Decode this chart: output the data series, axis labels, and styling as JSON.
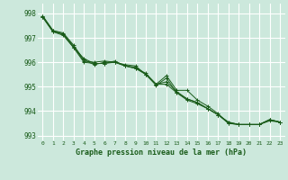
{
  "title": "Graphe pression niveau de la mer (hPa)",
  "xlabel_fontsize": 6.0,
  "line_color": "#1a5c1a",
  "bg_color": "#cce8dc",
  "grid_color": "#ffffff",
  "xlim": [
    -0.5,
    23.5
  ],
  "ylim": [
    992.8,
    998.4
  ],
  "yticks": [
    993,
    994,
    995,
    996,
    997,
    998
  ],
  "xticks": [
    0,
    1,
    2,
    3,
    4,
    5,
    6,
    7,
    8,
    9,
    10,
    11,
    12,
    13,
    14,
    15,
    16,
    17,
    18,
    19,
    20,
    21,
    22,
    23
  ],
  "series": [
    [
      997.9,
      997.3,
      997.2,
      996.7,
      996.1,
      995.9,
      996.0,
      996.0,
      995.85,
      995.75,
      995.55,
      995.1,
      995.45,
      994.85,
      994.85,
      994.45,
      994.2,
      993.9,
      993.5,
      993.45,
      993.45,
      993.45,
      993.6,
      993.55
    ],
    [
      997.9,
      997.3,
      997.15,
      996.65,
      996.05,
      996.0,
      996.05,
      996.0,
      995.9,
      995.85,
      995.5,
      995.1,
      995.2,
      994.8,
      994.5,
      994.35,
      994.1,
      993.85,
      993.55,
      993.45,
      993.45,
      993.45,
      993.65,
      993.55
    ],
    [
      997.85,
      997.25,
      997.15,
      996.6,
      996.0,
      995.95,
      995.95,
      996.0,
      995.85,
      995.8,
      995.5,
      995.05,
      995.35,
      994.75,
      994.5,
      994.35,
      994.1,
      993.85,
      993.55,
      993.45,
      993.45,
      993.45,
      993.65,
      993.55
    ],
    [
      997.85,
      997.25,
      997.1,
      996.6,
      996.15,
      995.95,
      995.95,
      996.05,
      995.85,
      995.75,
      995.5,
      995.1,
      995.1,
      994.75,
      994.45,
      994.3,
      994.1,
      993.85,
      993.5,
      993.45,
      993.45,
      993.45,
      993.65,
      993.55
    ]
  ]
}
